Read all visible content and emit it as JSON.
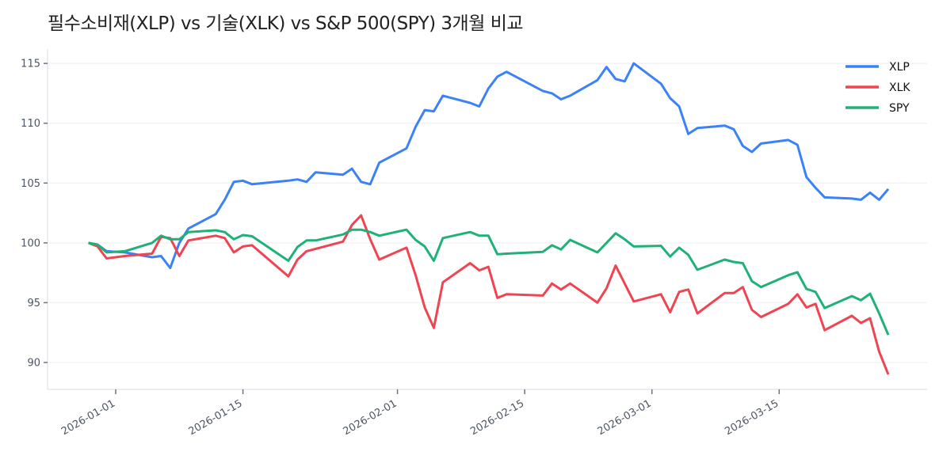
{
  "chart_data": {
    "type": "line",
    "title": "필수소비재(XLP) vs 기술(XLK) vs S&P 500(SPY) 3개월 비교",
    "xlabel": "",
    "ylabel": "",
    "ylim": [
      87.75,
      116.2
    ],
    "yticks": [
      90,
      95,
      100,
      105,
      110,
      115
    ],
    "xticks": [
      "2026-01-01",
      "2026-01-15",
      "2026-02-01",
      "2026-02-15",
      "2026-03-01",
      "2026-03-15"
    ],
    "grid": "horizontal",
    "legend_position": "top-right",
    "x": [
      "2025-12-29",
      "2025-12-30",
      "2025-12-31",
      "2026-01-02",
      "2026-01-05",
      "2026-01-06",
      "2026-01-07",
      "2026-01-08",
      "2026-01-09",
      "2026-01-12",
      "2026-01-13",
      "2026-01-14",
      "2026-01-15",
      "2026-01-16",
      "2026-01-20",
      "2026-01-21",
      "2026-01-22",
      "2026-01-23",
      "2026-01-26",
      "2026-01-27",
      "2026-01-28",
      "2026-01-29",
      "2026-01-30",
      "2026-02-02",
      "2026-02-03",
      "2026-02-04",
      "2026-02-05",
      "2026-02-06",
      "2026-02-09",
      "2026-02-10",
      "2026-02-11",
      "2026-02-12",
      "2026-02-13",
      "2026-02-17",
      "2026-02-18",
      "2026-02-19",
      "2026-02-20",
      "2026-02-23",
      "2026-02-24",
      "2026-02-25",
      "2026-02-26",
      "2026-02-27",
      "2026-03-02",
      "2026-03-03",
      "2026-03-04",
      "2026-03-05",
      "2026-03-06",
      "2026-03-09",
      "2026-03-10",
      "2026-03-11",
      "2026-03-12",
      "2026-03-13",
      "2026-03-16",
      "2026-03-17",
      "2026-03-18",
      "2026-03-19",
      "2026-03-20",
      "2026-03-23",
      "2026-03-24",
      "2026-03-25",
      "2026-03-26",
      "2026-03-27"
    ],
    "series": [
      {
        "name": "XLP",
        "color": "#3b82f6",
        "values": [
          100,
          99.85,
          99.3,
          99.2,
          98.8,
          98.9,
          97.9,
          100.0,
          101.2,
          102.4,
          103.6,
          105.1,
          105.2,
          104.9,
          105.2,
          105.3,
          105.1,
          105.9,
          105.7,
          106.2,
          105.1,
          104.9,
          106.7,
          107.9,
          109.7,
          111.1,
          111.0,
          112.3,
          111.7,
          111.4,
          112.9,
          113.9,
          114.3,
          112.7,
          112.5,
          112.0,
          112.3,
          113.6,
          114.7,
          113.7,
          113.5,
          115.0,
          113.3,
          112.1,
          111.4,
          109.1,
          109.6,
          109.8,
          109.5,
          108.1,
          107.6,
          108.3,
          108.6,
          108.2,
          105.5,
          104.6,
          103.8,
          103.7,
          103.6,
          104.2,
          103.6,
          104.5
        ]
      },
      {
        "name": "XLK",
        "color": "#ef4451",
        "values": [
          100,
          99.7,
          98.7,
          98.9,
          99.1,
          100.5,
          100.4,
          98.9,
          100.2,
          100.6,
          100.4,
          99.2,
          99.7,
          99.8,
          97.2,
          98.6,
          99.3,
          99.5,
          100.1,
          101.5,
          102.3,
          100.3,
          98.6,
          99.6,
          97.3,
          94.6,
          92.9,
          96.7,
          98.3,
          97.7,
          98.0,
          95.4,
          95.7,
          95.6,
          96.6,
          96.1,
          96.6,
          95.0,
          96.2,
          98.1,
          96.6,
          95.1,
          95.7,
          94.2,
          95.9,
          96.1,
          94.1,
          95.8,
          95.8,
          96.3,
          94.4,
          93.8,
          94.9,
          95.7,
          94.6,
          94.9,
          92.7,
          93.9,
          93.3,
          93.7,
          90.9,
          89.0
        ]
      },
      {
        "name": "SPY",
        "color": "#1fb178",
        "values": [
          100,
          99.85,
          99.2,
          99.3,
          100.0,
          100.6,
          100.3,
          100.3,
          100.9,
          101.05,
          100.9,
          100.3,
          100.65,
          100.55,
          98.5,
          99.65,
          100.2,
          100.2,
          100.7,
          101.1,
          101.1,
          100.9,
          100.6,
          101.1,
          100.25,
          99.7,
          98.5,
          100.4,
          100.9,
          100.6,
          100.6,
          99.05,
          99.1,
          99.25,
          99.8,
          99.45,
          100.25,
          99.2,
          100.0,
          100.8,
          100.3,
          99.7,
          99.75,
          98.85,
          99.6,
          99.0,
          97.75,
          98.6,
          98.4,
          98.3,
          96.8,
          96.3,
          97.3,
          97.55,
          96.15,
          95.9,
          94.55,
          95.55,
          95.2,
          95.75,
          94.1,
          92.3
        ]
      }
    ]
  }
}
